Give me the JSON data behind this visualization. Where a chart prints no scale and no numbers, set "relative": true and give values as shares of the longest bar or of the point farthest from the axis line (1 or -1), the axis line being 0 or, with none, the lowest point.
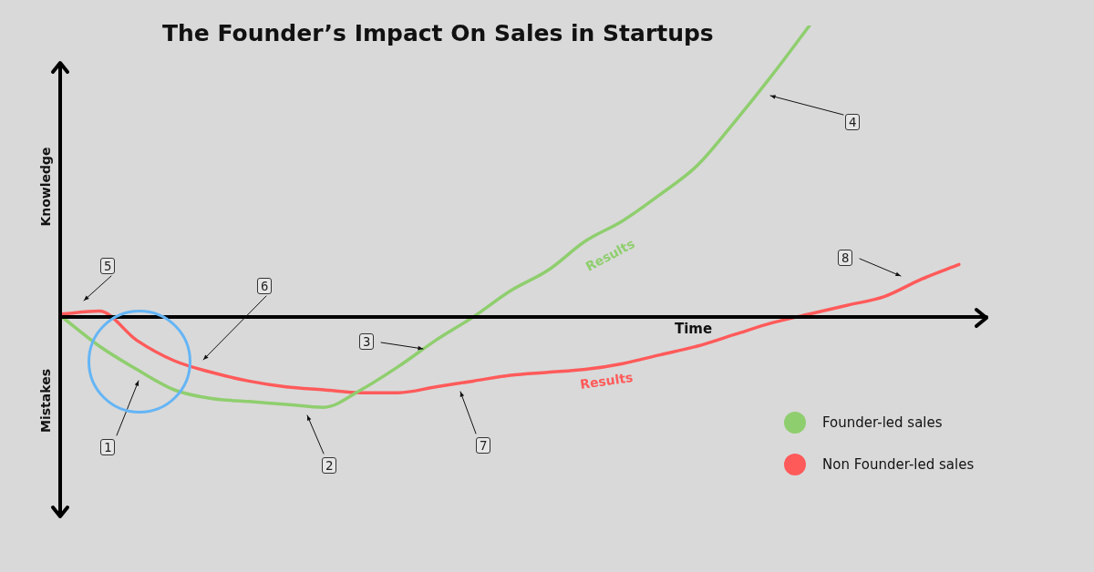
{
  "chart_data": {
    "type": "line",
    "title": "The Founder’s Impact On Sales in Startups",
    "xlabel": "Time",
    "relative": true,
    "legend": "bottom right",
    "marker": "none",
    "line_style": "solid",
    "categories": [
      null,
      null,
      null,
      null,
      null,
      null,
      null,
      null,
      null,
      null,
      null,
      null,
      null,
      null,
      null,
      null,
      null,
      null,
      null,
      null,
      null,
      null,
      null,
      null,
      null
    ],
    "series": [
      {
        "name": "Founder-led sales",
        "color": "#8fce6e",
        "values": [
          0,
          -0.1,
          -0.18,
          -0.25,
          -0.28,
          -0.29,
          -0.3,
          -0.31,
          -0.25,
          -0.17,
          -0.08,
          0.0,
          0.09,
          0.16,
          0.26,
          0.33,
          0.42,
          0.52,
          0.67,
          0.83,
          1.0,
          null,
          null,
          null,
          null
        ]
      },
      {
        "name": "Non Founder-led sales",
        "color": "#ff5a5a",
        "values": [
          0.01,
          0.02,
          -0.08,
          -0.15,
          -0.19,
          -0.22,
          -0.24,
          -0.25,
          -0.26,
          -0.26,
          -0.24,
          -0.22,
          -0.2,
          -0.19,
          -0.18,
          -0.16,
          -0.13,
          -0.1,
          -0.06,
          -0.02,
          0.01,
          0.04,
          0.07,
          0.13,
          0.18
        ]
      }
    ],
    "annotations": [
      "Knowledge",
      "Mistakes",
      "1",
      "2",
      "3",
      "4",
      "5",
      "6",
      "7",
      "8",
      "Results",
      "Results"
    ]
  }
}
